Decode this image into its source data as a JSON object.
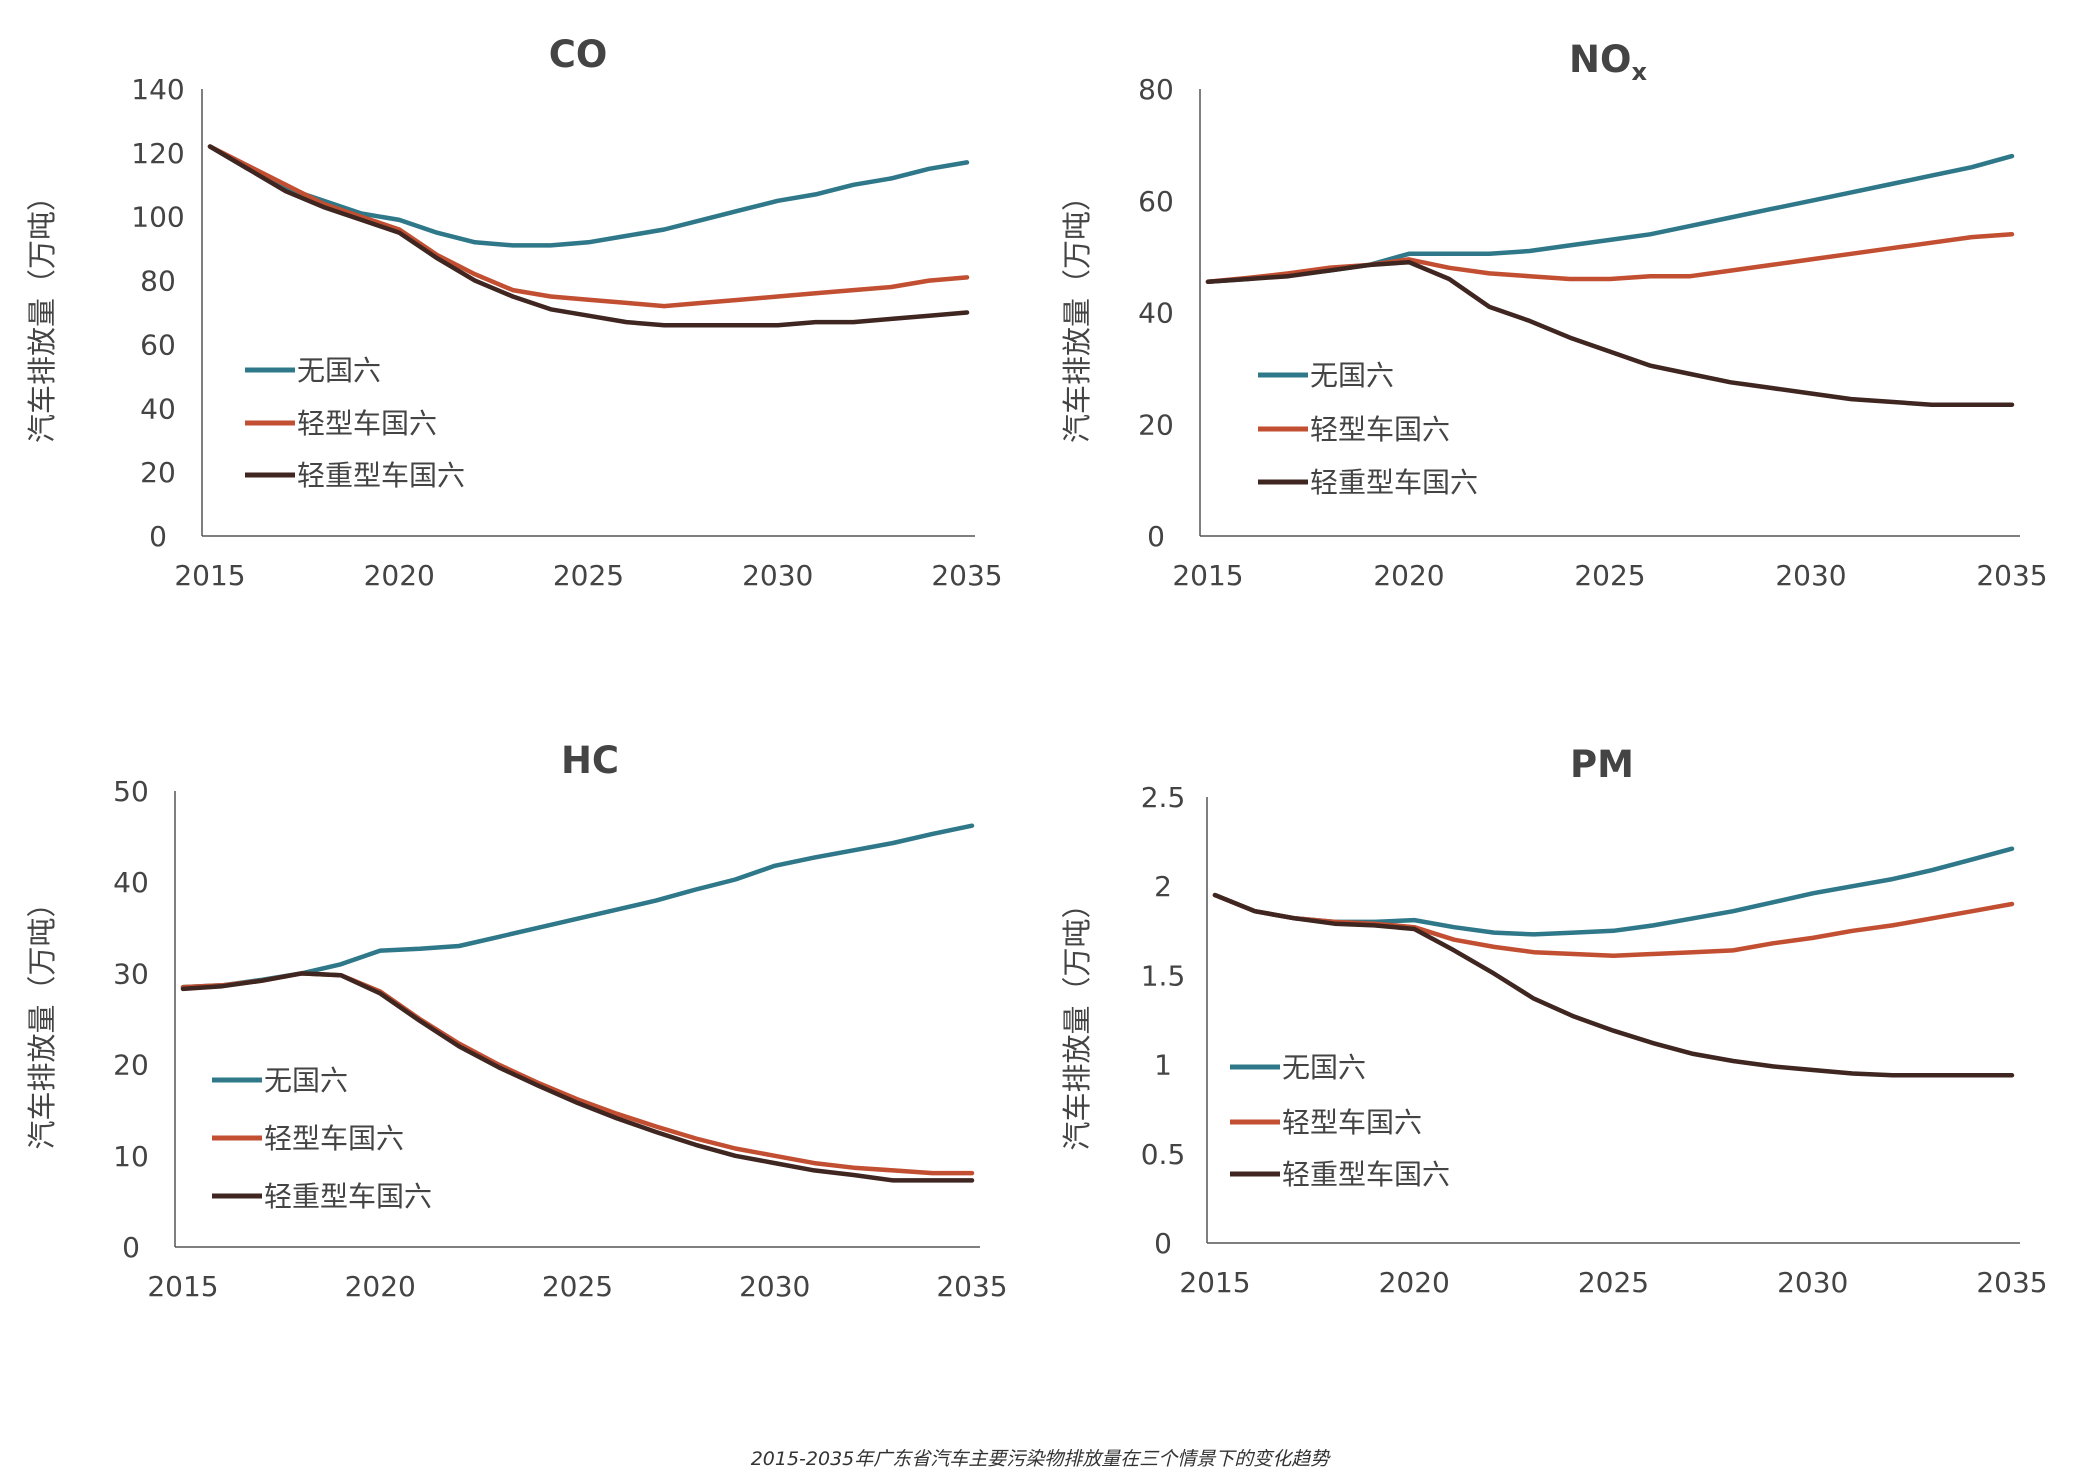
{
  "caption": "2015-2035年广东省汽车主要污染物排放量在三个情景下的变化趋势",
  "colors": {
    "无国六": "#2e7889",
    "轻型车国六": "#c24f32",
    "轻重型车国六": "#3f2620",
    "axis": "#555555",
    "text": "#444444"
  },
  "legend_labels": [
    "无国六",
    "轻型车国六",
    "轻重型车国六"
  ],
  "chart_data": [
    {
      "type": "line",
      "title": "CO",
      "ylabel": "汽车排放量（万吨）",
      "xlim": [
        2015,
        2035
      ],
      "ylim": [
        0,
        140
      ],
      "yticks": [
        0,
        20,
        40,
        60,
        80,
        100,
        120,
        140
      ],
      "xticks": [
        2015,
        2020,
        2025,
        2030,
        2035
      ],
      "legend": "left-middle",
      "grid": false,
      "x": [
        2015,
        2016,
        2017,
        2018,
        2019,
        2020,
        2021,
        2022,
        2023,
        2024,
        2025,
        2026,
        2027,
        2028,
        2029,
        2030,
        2031,
        2032,
        2033,
        2034,
        2035
      ],
      "series": [
        {
          "name": "无国六",
          "values": [
            122,
            115,
            109,
            105,
            101,
            99,
            95,
            92,
            91,
            91,
            92,
            94,
            96,
            99,
            102,
            105,
            107,
            110,
            112,
            115,
            117
          ]
        },
        {
          "name": "轻型车国六",
          "values": [
            122,
            116,
            110,
            104,
            100,
            96,
            88,
            82,
            77,
            75,
            74,
            73,
            72,
            73,
            74,
            75,
            76,
            77,
            78,
            80,
            81
          ]
        },
        {
          "name": "轻重型车国六",
          "values": [
            122,
            115,
            108,
            103,
            99,
            95,
            87,
            80,
            75,
            71,
            69,
            67,
            66,
            66,
            66,
            66,
            67,
            67,
            68,
            69,
            70
          ]
        }
      ]
    },
    {
      "type": "line",
      "title": "NOx",
      "ylabel": "汽车排放量（万吨）",
      "xlim": [
        2015,
        2035
      ],
      "ylim": [
        0,
        80
      ],
      "yticks": [
        0,
        20,
        40,
        60,
        80
      ],
      "xticks": [
        2015,
        2020,
        2025,
        2030,
        2035
      ],
      "legend": "left-middle",
      "grid": false,
      "x": [
        2015,
        2016,
        2017,
        2018,
        2019,
        2020,
        2021,
        2022,
        2023,
        2024,
        2025,
        2026,
        2027,
        2028,
        2029,
        2030,
        2031,
        2032,
        2033,
        2034,
        2035
      ],
      "series": [
        {
          "name": "无国六",
          "values": [
            45.5,
            46,
            46.8,
            47.5,
            48.5,
            50.5,
            50.5,
            50.5,
            51,
            52,
            53,
            54,
            55.5,
            57,
            58.5,
            60,
            61.5,
            63,
            64.5,
            66,
            68
          ]
        },
        {
          "name": "轻型车国六",
          "values": [
            45.5,
            46.2,
            47,
            48,
            48.5,
            49.5,
            48,
            47,
            46.5,
            46,
            46,
            46.5,
            46.5,
            47.5,
            48.5,
            49.5,
            50.5,
            51.5,
            52.5,
            53.5,
            54
          ]
        },
        {
          "name": "轻重型车国六",
          "values": [
            45.5,
            46,
            46.5,
            47.5,
            48.5,
            49,
            46,
            41,
            38.5,
            35.5,
            33,
            30.5,
            29,
            27.5,
            26.5,
            25.5,
            24.5,
            24,
            23.5,
            23.5,
            23.5
          ]
        }
      ]
    },
    {
      "type": "line",
      "title": "HC",
      "ylabel": "汽车排放量（万吨）",
      "xlim": [
        2015,
        2035
      ],
      "ylim": [
        0,
        50
      ],
      "yticks": [
        0,
        10,
        20,
        30,
        40,
        50
      ],
      "xticks": [
        2015,
        2020,
        2025,
        2030,
        2035
      ],
      "legend": "left-middle",
      "grid": false,
      "x": [
        2015,
        2016,
        2017,
        2018,
        2019,
        2020,
        2021,
        2022,
        2023,
        2024,
        2025,
        2026,
        2027,
        2028,
        2029,
        2030,
        2031,
        2032,
        2033,
        2034,
        2035
      ],
      "series": [
        {
          "name": "无国六",
          "values": [
            28.5,
            28.7,
            29.3,
            30,
            31,
            32.5,
            32.7,
            33,
            34,
            35,
            36,
            37,
            38,
            39.2,
            40.3,
            41.8,
            42.7,
            43.5,
            44.3,
            45.3,
            46.2
          ]
        },
        {
          "name": "轻型车国六",
          "values": [
            28.5,
            28.7,
            29.2,
            30,
            29.8,
            28,
            25,
            22.3,
            20,
            18,
            16.2,
            14.6,
            13.2,
            11.9,
            10.8,
            10,
            9.2,
            8.7,
            8.4,
            8.1,
            8.1
          ]
        },
        {
          "name": "轻重型车国六",
          "values": [
            28.3,
            28.6,
            29.2,
            30,
            29.8,
            27.8,
            24.8,
            22,
            19.7,
            17.7,
            15.8,
            14.1,
            12.6,
            11.2,
            10,
            9.2,
            8.4,
            7.9,
            7.3,
            7.3,
            7.3
          ]
        }
      ]
    },
    {
      "type": "line",
      "title": "PM",
      "ylabel": "汽车排放量（万吨）",
      "xlim": [
        2015,
        2035
      ],
      "ylim": [
        0,
        2.5
      ],
      "yticks": [
        0,
        0.5,
        1,
        1.5,
        2,
        2.5
      ],
      "ytick_labels": [
        "0",
        "0.5",
        "1",
        "1.5",
        "2",
        "2.5"
      ],
      "xticks": [
        2015,
        2020,
        2025,
        2030,
        2035
      ],
      "legend": "left-middle",
      "grid": false,
      "x": [
        2015,
        2016,
        2017,
        2018,
        2019,
        2020,
        2021,
        2022,
        2023,
        2024,
        2025,
        2026,
        2027,
        2028,
        2029,
        2030,
        2031,
        2032,
        2033,
        2034,
        2035
      ],
      "series": [
        {
          "name": "无国六",
          "values": [
            1.95,
            1.86,
            1.82,
            1.8,
            1.8,
            1.81,
            1.77,
            1.74,
            1.73,
            1.74,
            1.75,
            1.78,
            1.82,
            1.86,
            1.91,
            1.96,
            2.0,
            2.04,
            2.09,
            2.15,
            2.21
          ]
        },
        {
          "name": "轻型车国六",
          "values": [
            1.95,
            1.86,
            1.82,
            1.8,
            1.79,
            1.77,
            1.7,
            1.66,
            1.63,
            1.62,
            1.61,
            1.62,
            1.63,
            1.64,
            1.68,
            1.71,
            1.75,
            1.78,
            1.82,
            1.86,
            1.9
          ]
        },
        {
          "name": "轻重型车国六",
          "values": [
            1.95,
            1.86,
            1.82,
            1.79,
            1.78,
            1.76,
            1.64,
            1.51,
            1.37,
            1.27,
            1.19,
            1.12,
            1.06,
            1.02,
            0.99,
            0.97,
            0.95,
            0.94,
            0.94,
            0.94,
            0.94
          ]
        }
      ]
    }
  ]
}
